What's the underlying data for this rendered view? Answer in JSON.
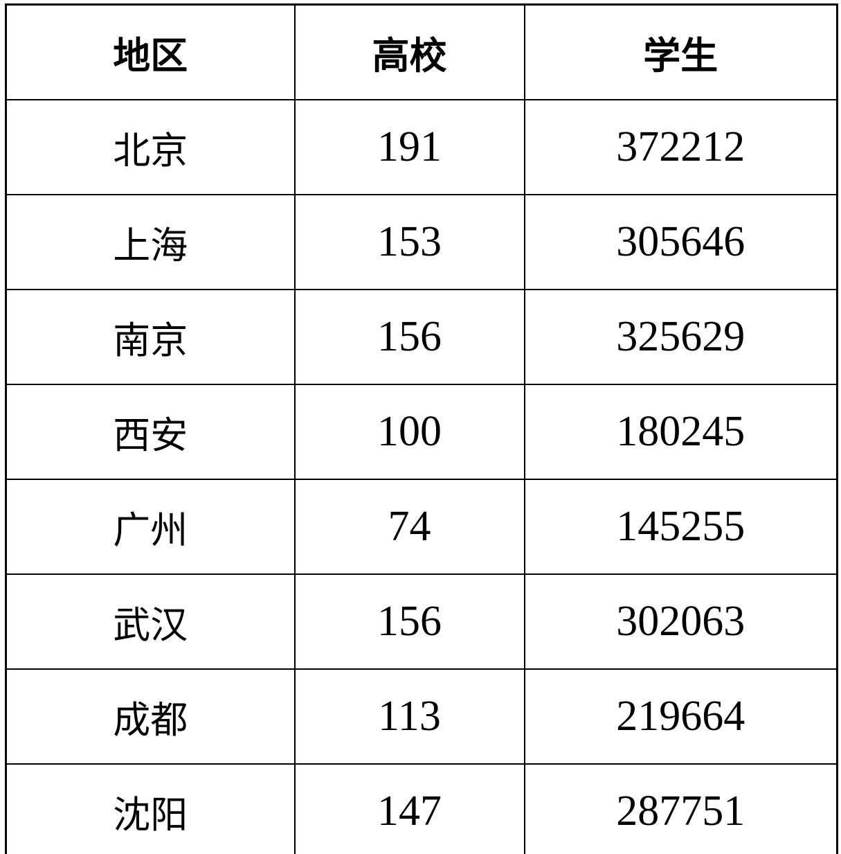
{
  "table": {
    "headers": [
      "地区",
      "高校",
      "学生"
    ],
    "rows": [
      [
        "北京",
        "191",
        "372212"
      ],
      [
        "上海",
        "153",
        "305646"
      ],
      [
        "南京",
        "156",
        "325629"
      ],
      [
        "西安",
        "100",
        "180245"
      ],
      [
        "广州",
        "74",
        "145255"
      ],
      [
        "武汉",
        "156",
        "302063"
      ],
      [
        "成都",
        "113",
        "219664"
      ],
      [
        "沈阳",
        "147",
        "287751"
      ]
    ]
  },
  "chart_data": {
    "type": "table",
    "title": "",
    "columns": [
      "地区",
      "高校",
      "学生"
    ],
    "rows": [
      [
        "北京",
        191,
        372212
      ],
      [
        "上海",
        153,
        305646
      ],
      [
        "南京",
        156,
        325629
      ],
      [
        "西安",
        100,
        180245
      ],
      [
        "广州",
        74,
        145255
      ],
      [
        "武汉",
        156,
        302063
      ],
      [
        "成都",
        113,
        219664
      ],
      [
        "沈阳",
        147,
        287751
      ]
    ]
  },
  "colors": {
    "border": "#000000",
    "text": "#000000",
    "background": "#ffffff"
  }
}
